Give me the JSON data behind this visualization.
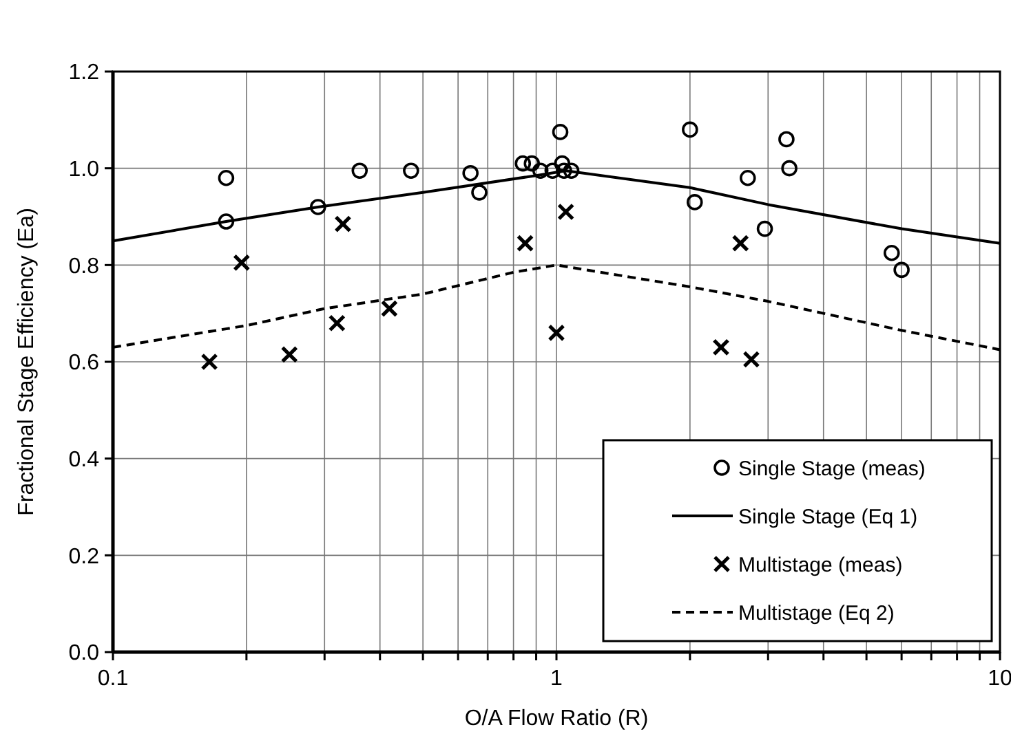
{
  "chart_data": {
    "type": "scatter",
    "xlabel": "O/A Flow Ratio (R)",
    "ylabel": "Fractional Stage Efficiency (Ea)",
    "log": "x",
    "grid": true,
    "legend": "bottom right",
    "xlim": [
      0.1,
      10
    ],
    "ylim": [
      0,
      1.2
    ],
    "xticks": [
      0.1,
      {
        "value": 0.2,
        "label": null
      },
      {
        "value": 0.3,
        "label": null
      },
      {
        "value": 0.4,
        "label": null
      },
      {
        "value": 0.5,
        "label": null
      },
      {
        "value": 0.6,
        "label": null
      },
      {
        "value": 0.7,
        "label": null
      },
      {
        "value": 0.8,
        "label": null
      },
      {
        "value": 0.9,
        "label": null
      },
      1,
      {
        "value": 2,
        "label": null
      },
      {
        "value": 3,
        "label": null
      },
      {
        "value": 4,
        "label": null
      },
      {
        "value": 5,
        "label": null
      },
      {
        "value": 6,
        "label": null
      },
      {
        "value": 7,
        "label": null
      },
      {
        "value": 8,
        "label": null
      },
      {
        "value": 9,
        "label": null
      },
      10
    ],
    "yticks": [
      {
        "value": 0,
        "label": "0.0"
      },
      {
        "value": 0.2,
        "label": "0.2"
      },
      {
        "value": 0.4,
        "label": "0.4"
      },
      {
        "value": 0.6,
        "label": "0.6"
      },
      {
        "value": 0.8,
        "label": "0.8"
      },
      {
        "value": 1,
        "label": "1.0"
      },
      {
        "value": 1.2,
        "label": "1.2"
      }
    ],
    "series": [
      {
        "name": "Single Stage (meas)",
        "marker": "circle",
        "color": "#000000",
        "x": [
          0.18,
          0.18,
          0.29,
          0.36,
          0.47,
          0.64,
          0.67,
          0.84,
          0.88,
          0.92,
          0.98,
          1.02,
          1.03,
          1.04,
          1.08,
          2.0,
          2.05,
          2.7,
          2.95,
          3.3,
          3.35,
          5.7,
          6.0
        ],
        "values": [
          0.98,
          0.89,
          0.92,
          0.995,
          0.995,
          0.99,
          0.95,
          1.01,
          1.01,
          0.995,
          0.995,
          1.075,
          1.01,
          0.995,
          0.995,
          1.08,
          0.93,
          0.98,
          0.875,
          1.06,
          1.0,
          0.825,
          0.79
        ]
      },
      {
        "name": "Single Stage (Eq 1)",
        "type": "line",
        "line_style": "solid",
        "color": "#000000",
        "x": [
          0.1,
          0.18,
          0.29,
          0.5,
          0.9,
          1.05,
          2,
          3,
          6,
          10
        ],
        "values": [
          0.85,
          0.89,
          0.92,
          0.95,
          0.985,
          0.995,
          0.96,
          0.925,
          0.875,
          0.845
        ]
      },
      {
        "name": "Multistage (meas)",
        "marker": "cross",
        "color": "#000000",
        "x": [
          0.165,
          0.195,
          0.25,
          0.32,
          0.33,
          0.42,
          0.85,
          1.0,
          1.05,
          2.35,
          2.6,
          2.75
        ],
        "values": [
          0.6,
          0.805,
          0.615,
          0.68,
          0.885,
          0.71,
          0.845,
          0.66,
          0.91,
          0.63,
          0.845,
          0.605
        ]
      },
      {
        "name": "Multistage (Eq 2)",
        "type": "line",
        "line_style": "dashed",
        "color": "#000000",
        "x": [
          0.1,
          0.2,
          0.3,
          0.5,
          0.8,
          1.0,
          2,
          3,
          6,
          10
        ],
        "values": [
          0.63,
          0.675,
          0.71,
          0.74,
          0.785,
          0.8,
          0.755,
          0.725,
          0.665,
          0.625
        ]
      }
    ]
  }
}
